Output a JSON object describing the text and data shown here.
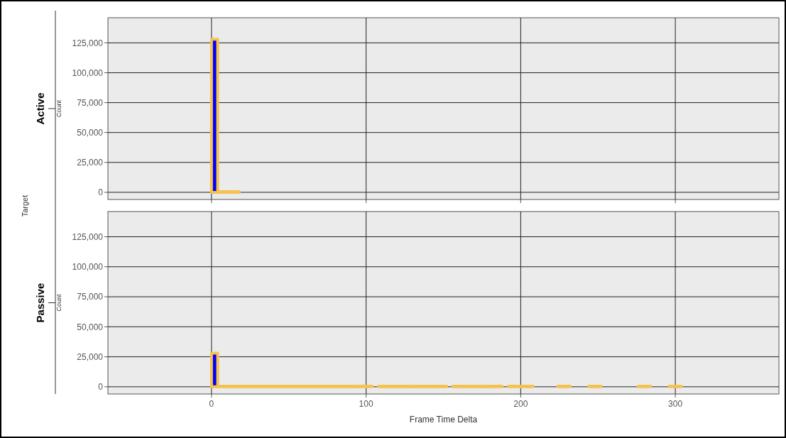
{
  "chart_data": [
    {
      "type": "histogram",
      "title": "Active",
      "ylabel": "Count",
      "annotations": [
        "Target"
      ],
      "color": "#0000ff",
      "bins": [
        0,
        4,
        18
      ],
      "values": [
        128000,
        500
      ],
      "xlim": [
        -67,
        367
      ],
      "xticks": [
        0,
        100,
        200,
        300
      ],
      "ylim": [
        -6000,
        146000
      ],
      "yticks": [
        {
          "value": 0,
          "label": "0"
        },
        {
          "value": 25000,
          "label": "25,000"
        },
        {
          "value": 50000,
          "label": "50,000"
        },
        {
          "value": 75000,
          "label": "75,000"
        },
        {
          "value": 100000,
          "label": "100,000"
        },
        {
          "value": 125000,
          "label": "125,000"
        }
      ],
      "grid": true,
      "tick_labels": "y"
    },
    {
      "type": "histogram",
      "title": "Passive",
      "ylabel": "Count",
      "xlabel": "Frame Time Delta",
      "color": "#0000ff",
      "bins": [
        0,
        4,
        92,
        104,
        108,
        128,
        152,
        156,
        168,
        176,
        188,
        192,
        200,
        208,
        224,
        232,
        244,
        252,
        276,
        284,
        296,
        304
      ],
      "values": [
        28000,
        500,
        500,
        0,
        500,
        500,
        0,
        500,
        500,
        500,
        0,
        500,
        500,
        0,
        500,
        0,
        500,
        0,
        500,
        0,
        500
      ],
      "xlim": [
        -67,
        367
      ],
      "xticks": [
        0,
        100,
        200,
        300
      ],
      "ylim": [
        -6000,
        146000
      ],
      "yticks": [
        {
          "value": 0,
          "label": "0"
        },
        {
          "value": 25000,
          "label": "25,000"
        },
        {
          "value": 50000,
          "label": "50,000"
        },
        {
          "value": 75000,
          "label": "75,000"
        },
        {
          "value": 100000,
          "label": "100,000"
        },
        {
          "value": 125000,
          "label": "125,000"
        }
      ],
      "grid": true
    }
  ]
}
